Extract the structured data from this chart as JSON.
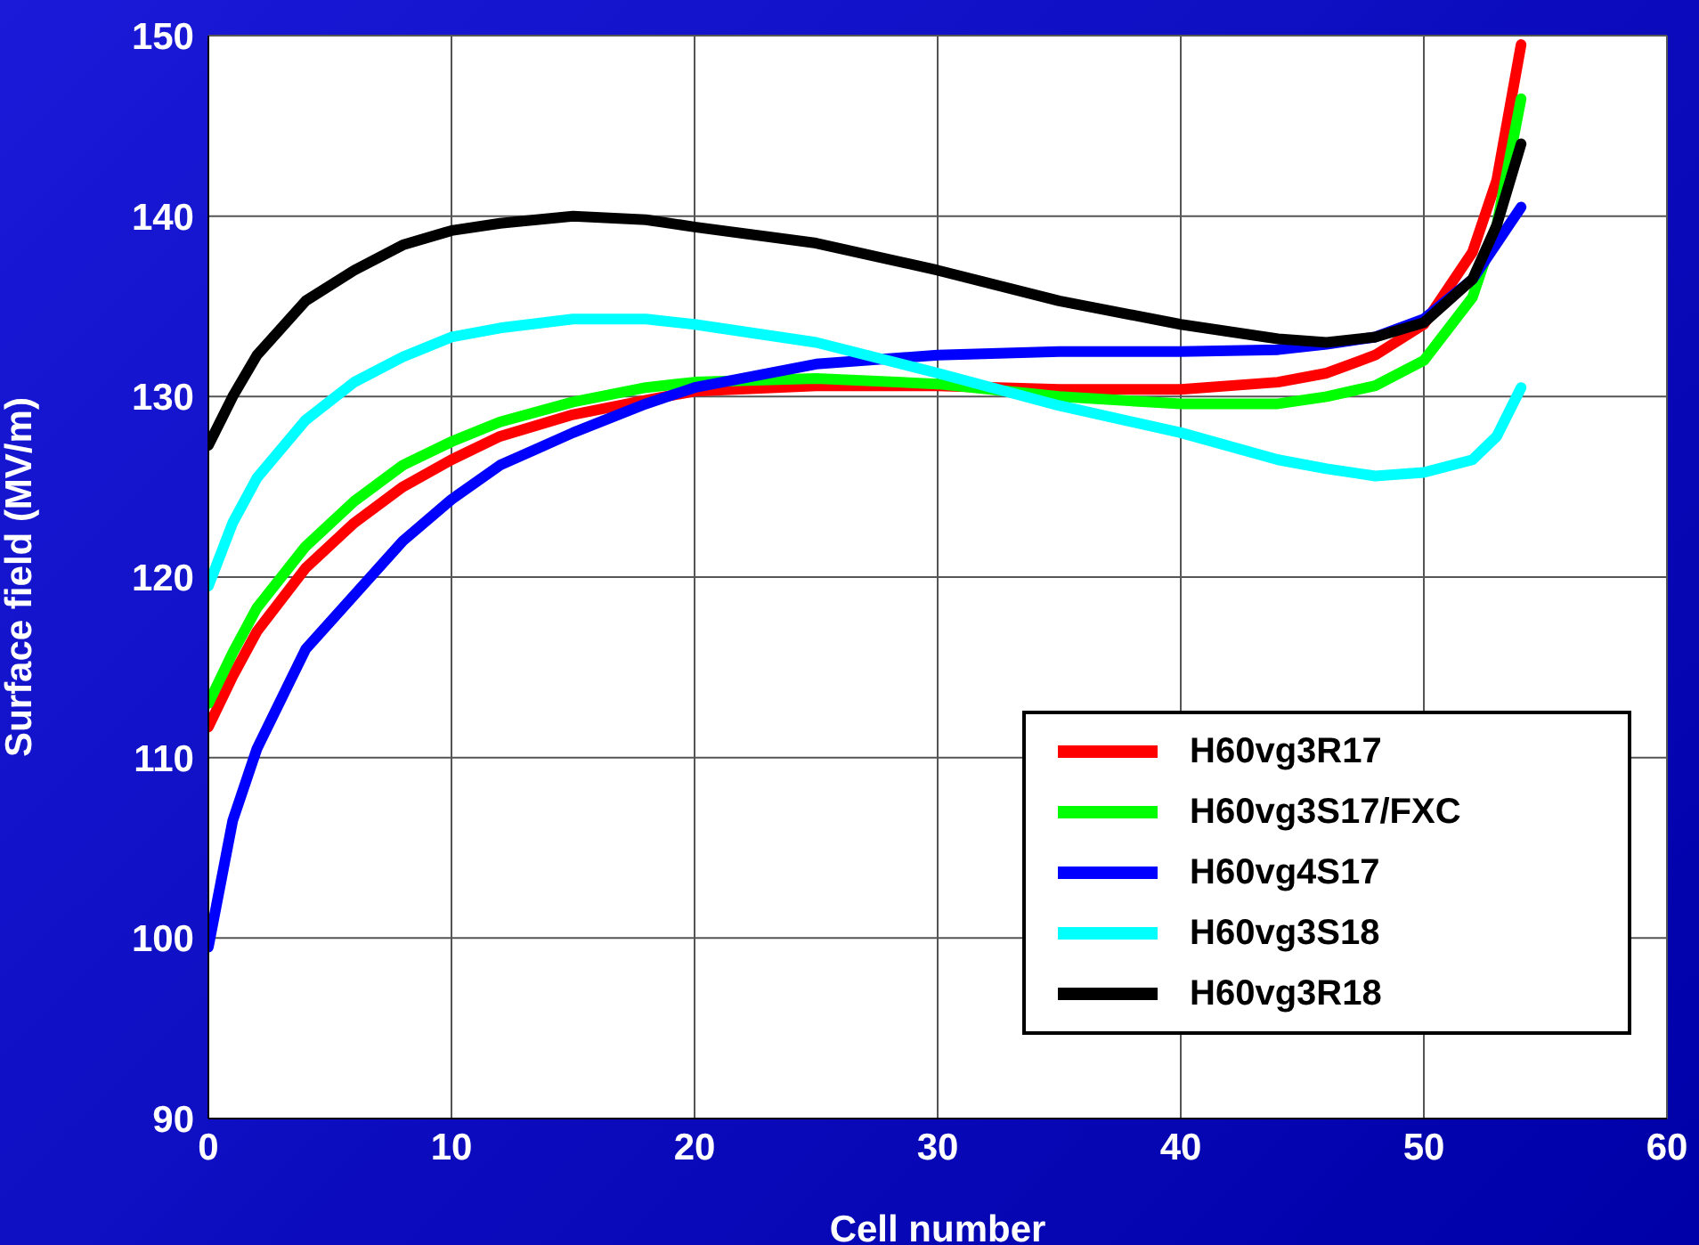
{
  "chart_data": {
    "type": "line",
    "xlabel": "Cell number",
    "ylabel": "Surface field (MV/m)",
    "x": [
      0,
      1,
      2,
      4,
      6,
      8,
      10,
      12,
      15,
      18,
      20,
      25,
      30,
      35,
      40,
      44,
      46,
      48,
      50,
      52,
      53,
      54
    ],
    "series": [
      {
        "name": "H60vg3R17",
        "color": "#ff0000",
        "values": [
          111.7,
          114.5,
          117,
          120.5,
          123,
          125,
          126.5,
          127.8,
          129,
          129.8,
          130.3,
          130.6,
          130.6,
          130.4,
          130.4,
          130.8,
          131.3,
          132.3,
          134,
          138,
          142,
          149.5
        ]
      },
      {
        "name": "H60vg3S17/FXC",
        "color": "#00ff00",
        "values": [
          113,
          115.8,
          118.3,
          121.7,
          124.2,
          126.2,
          127.5,
          128.6,
          129.7,
          130.5,
          130.8,
          131,
          130.7,
          130,
          129.6,
          129.6,
          130,
          130.6,
          132,
          135.5,
          139.5,
          146.5
        ]
      },
      {
        "name": "H60vg4S17",
        "color": "#0000ff",
        "values": [
          99.5,
          106.5,
          110.5,
          116,
          119,
          122,
          124.3,
          126.2,
          128,
          129.6,
          130.5,
          131.8,
          132.3,
          132.5,
          132.5,
          132.6,
          132.9,
          133.3,
          134.3,
          136.5,
          138.5,
          140.5
        ]
      },
      {
        "name": "H60vg3S18",
        "color": "#00ffff",
        "values": [
          119.5,
          123,
          125.5,
          128.7,
          130.8,
          132.2,
          133.3,
          133.8,
          134.3,
          134.3,
          134,
          133,
          131.3,
          129.5,
          128,
          126.5,
          126,
          125.6,
          125.8,
          126.5,
          127.8,
          130.5
        ]
      },
      {
        "name": "H60vg3R18",
        "color": "#000000",
        "values": [
          127.3,
          130,
          132.3,
          135.3,
          137,
          138.4,
          139.2,
          139.6,
          140,
          139.8,
          139.4,
          138.5,
          137,
          135.3,
          134,
          133.2,
          133,
          133.3,
          134.1,
          136.5,
          139.5,
          144
        ]
      }
    ],
    "xlim": [
      0,
      60
    ],
    "xticks": [
      0,
      10,
      20,
      30,
      40,
      50,
      60
    ],
    "ylim": [
      90,
      150
    ],
    "yticks": [
      90,
      100,
      110,
      120,
      130,
      140,
      150
    ],
    "grid": true,
    "legend": "bottom right",
    "marker": "none",
    "line_style": "solid"
  }
}
